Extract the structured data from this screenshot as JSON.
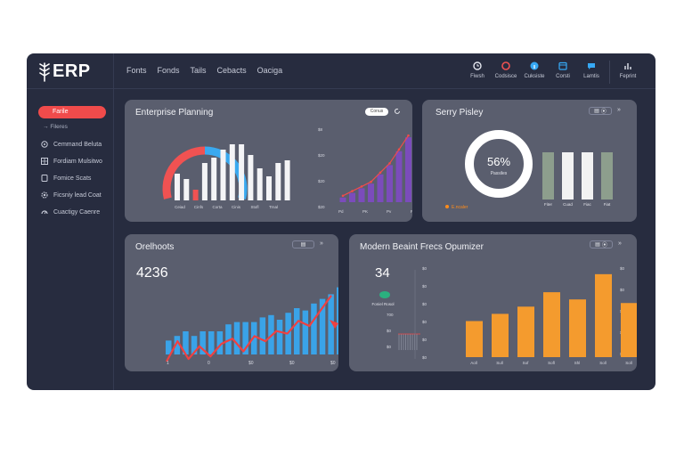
{
  "app": {
    "title": "ERP",
    "nav": [
      "Fonts",
      "Fonds",
      "Tails",
      "Cebacts",
      "Oaciga"
    ],
    "tools": [
      {
        "label": "Fiwsh",
        "icon": "clock-icon",
        "color": "#e4e6ef"
      },
      {
        "label": "Codsisce",
        "icon": "alert-icon",
        "color": "#ef5151"
      },
      {
        "label": "Cuksiste",
        "icon": "info-icon",
        "color": "#36a8f4"
      },
      {
        "label": "Corsti",
        "icon": "calendar-icon",
        "color": "#36a8f4"
      },
      {
        "label": "Lamtis",
        "icon": "chat-icon",
        "color": "#36a8f4"
      },
      {
        "label": "Feprint",
        "icon": "report-icon",
        "color": "#e4e6ef"
      }
    ]
  },
  "sidebar": {
    "active": "Farile",
    "sub": "Fileres",
    "items": [
      {
        "label": "Cemmand Beluta",
        "icon": "target-icon"
      },
      {
        "label": "Fordiam Mulsitwo",
        "icon": "grid-icon"
      },
      {
        "label": "Fomice Scats",
        "icon": "doc-icon"
      },
      {
        "label": "Ficsniy lead Coat",
        "icon": "gear-icon"
      },
      {
        "label": "Cuactigy Caenre",
        "icon": "gauge-icon"
      }
    ]
  },
  "cards": {
    "planning": {
      "title": "Enterprise Planning",
      "pill": "Conus",
      "gauge_low_color": "#f05252",
      "gauge_high_color": "#3aa9ef",
      "bar_labels": [
        "Ceiad",
        "Cinfs",
        "Corta",
        "Cinis",
        "Stofl",
        "Trnal"
      ],
      "bar_values": [
        10,
        8,
        4,
        14,
        16,
        19,
        21,
        21,
        17,
        12,
        9,
        14,
        15
      ],
      "red_index": 2,
      "yticks": [
        "$8",
        "$20",
        "$20",
        "$20"
      ],
      "trend_labels": [
        "Pd",
        "PK",
        "Pv",
        "Pv"
      ],
      "trend_values": [
        2,
        4,
        6,
        8,
        12,
        16,
        22,
        28
      ]
    },
    "survey": {
      "title": "Serry Pisley",
      "percent": "56%",
      "caption": "Passiles",
      "legend": "E.ncaler",
      "legend_color": "#ff8c1a",
      "controls": [
        "▤",
        "⦿",
        "»"
      ],
      "bars": [
        {
          "label": "Fiter",
          "value": 5.3,
          "color": "#8d9e8d"
        },
        {
          "label": "Cuad",
          "value": 5.3,
          "color": "#f2f2f2"
        },
        {
          "label": "Fiac",
          "value": 5.3,
          "color": "#f2f2f2"
        },
        {
          "label": "Fiat",
          "value": 5.3,
          "color": "#8d9e8d"
        }
      ]
    },
    "outlooks": {
      "title": "Orelhoots",
      "kpi": "4236",
      "controls": [
        "▤",
        "»"
      ],
      "bar_values": [
        3,
        4,
        5,
        4,
        5,
        5,
        5,
        6.5,
        7,
        7,
        7,
        8,
        8.5,
        7.5,
        9,
        10,
        9.5,
        11,
        12,
        13,
        14.5
      ],
      "trend_values": [
        3,
        7,
        3.5,
        6,
        4,
        6.5,
        7.5,
        5,
        8,
        7,
        9,
        8.5,
        11,
        10,
        13,
        16
      ],
      "x_labels": [
        "1",
        "0",
        "$0",
        "$0",
        "$0",
        "$0"
      ]
    },
    "optimizer": {
      "title": "Modern Beaint Frecs Opumizer",
      "kpi": "34",
      "dot_label": "Foniel Rosol",
      "dot_color": "#2bb07f",
      "left_ticks": [
        "700",
        "$0",
        "$0"
      ],
      "controls": [
        "▤",
        "⦿",
        "»"
      ],
      "bar_values": [
        5,
        6,
        7,
        9,
        8,
        11.5,
        7.5
      ],
      "y_ticks_left": [
        "$0",
        "$0",
        "$0",
        "$0",
        "$0",
        "$0"
      ],
      "y_ticks_right": [
        "$0",
        "$0",
        "$0",
        "$0",
        "$0"
      ],
      "x_labels": [
        "Aoll",
        "Sull",
        "Sof",
        "Sofl",
        "Shl",
        "Soll",
        "Soll"
      ]
    }
  }
}
